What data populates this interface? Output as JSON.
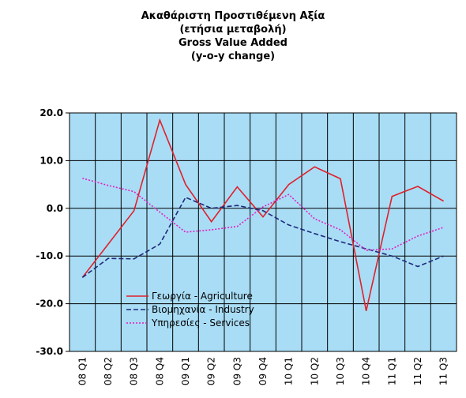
{
  "chart_data": {
    "type": "line",
    "title_lines": [
      "Ακαθάριστη Προστιθέμενη Αξία",
      "(ετήσια μεταβολή)",
      "Gross Value Added",
      "(y-o-y change)"
    ],
    "categories": [
      "08 Q1",
      "08 Q2",
      "08 Q3",
      "08 Q4",
      "09 Q1",
      "09 Q2",
      "09 Q3",
      "09 Q4",
      "10 Q1",
      "10 Q2",
      "10 Q3",
      "10 Q4",
      "11 Q1",
      "11 Q2",
      "11 Q3"
    ],
    "series": [
      {
        "name": "Γεωργία - Agriculture",
        "color": "#e0202a",
        "dash": "solid",
        "values": [
          -14.5,
          -7.5,
          -0.5,
          18.5,
          5.0,
          -2.8,
          4.5,
          -1.8,
          5.0,
          8.7,
          6.2,
          -21.5,
          2.5,
          4.6,
          1.5
        ]
      },
      {
        "name": "Βιομηχανία - Industry",
        "color": "#1f2a7a",
        "dash": "dashed",
        "values": [
          -14.5,
          -10.5,
          -10.6,
          -7.5,
          2.3,
          0.0,
          0.6,
          -0.5,
          -3.5,
          -5.3,
          -7.0,
          -8.5,
          -10.0,
          -12.2,
          -10.0
        ]
      },
      {
        "name": "Υπηρεσίες - Services",
        "color": "#e020c0",
        "dash": "dotted",
        "values": [
          6.3,
          4.8,
          3.5,
          -0.8,
          -5.0,
          -4.5,
          -3.8,
          0.3,
          2.9,
          -2.2,
          -4.5,
          -8.8,
          -8.5,
          -5.8,
          -4.0
        ]
      }
    ],
    "ylim": [
      -30,
      20
    ],
    "yticks": [
      {
        "value": -30,
        "label": "-30.0"
      },
      {
        "value": -20,
        "label": "-20.0"
      },
      {
        "value": -10,
        "label": "-10.0"
      },
      {
        "value": 0,
        "label": "0.0"
      },
      {
        "value": 10,
        "label": "10.0"
      },
      {
        "value": 20,
        "label": "20.0"
      }
    ],
    "grid": true,
    "legend": "lower left",
    "background": "#a9ddf6"
  }
}
